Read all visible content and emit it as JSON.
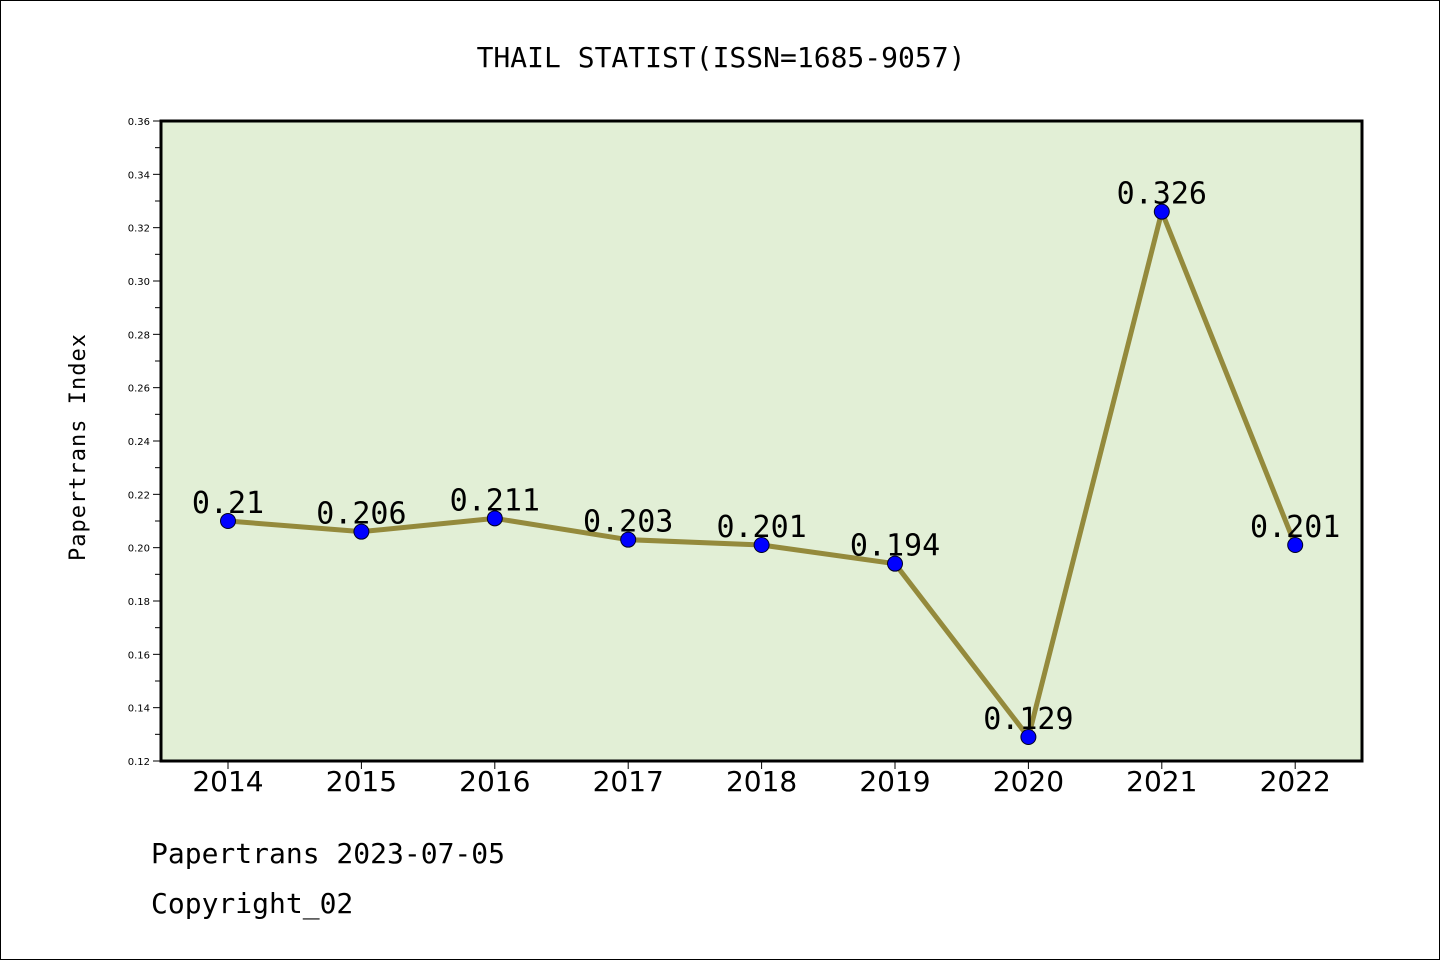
{
  "chart_data": {
    "type": "line",
    "title": "THAIL STATIST(ISSN=1685-9057)",
    "xlabel": "",
    "ylabel": "Papertrans Index",
    "categories": [
      "2014",
      "2015",
      "2016",
      "2017",
      "2018",
      "2019",
      "2020",
      "2021",
      "2022"
    ],
    "series": [
      {
        "values": [
          0.21,
          0.206,
          0.211,
          0.203,
          0.201,
          0.194,
          0.129,
          0.326,
          0.201
        ],
        "data_labels": [
          "0.21",
          "0.206",
          "0.211",
          "0.203",
          "0.201",
          "0.194",
          "0.129",
          "0.326",
          "0.201"
        ],
        "line_color": "#948a3c",
        "marker_color": "#0000ff"
      }
    ],
    "ylim": [
      0.12,
      0.36
    ],
    "yticks": [
      "0.12",
      "0.14",
      "0.16",
      "0.18",
      "0.20",
      "0.22",
      "0.24",
      "0.26",
      "0.28",
      "0.30",
      "0.32",
      "0.34",
      "0.36"
    ],
    "grid": false,
    "legend": "none",
    "plot_background": "#e2efd6"
  },
  "footer": {
    "line1": "Papertrans 2023-07-05",
    "line2": "Copyright_02"
  }
}
